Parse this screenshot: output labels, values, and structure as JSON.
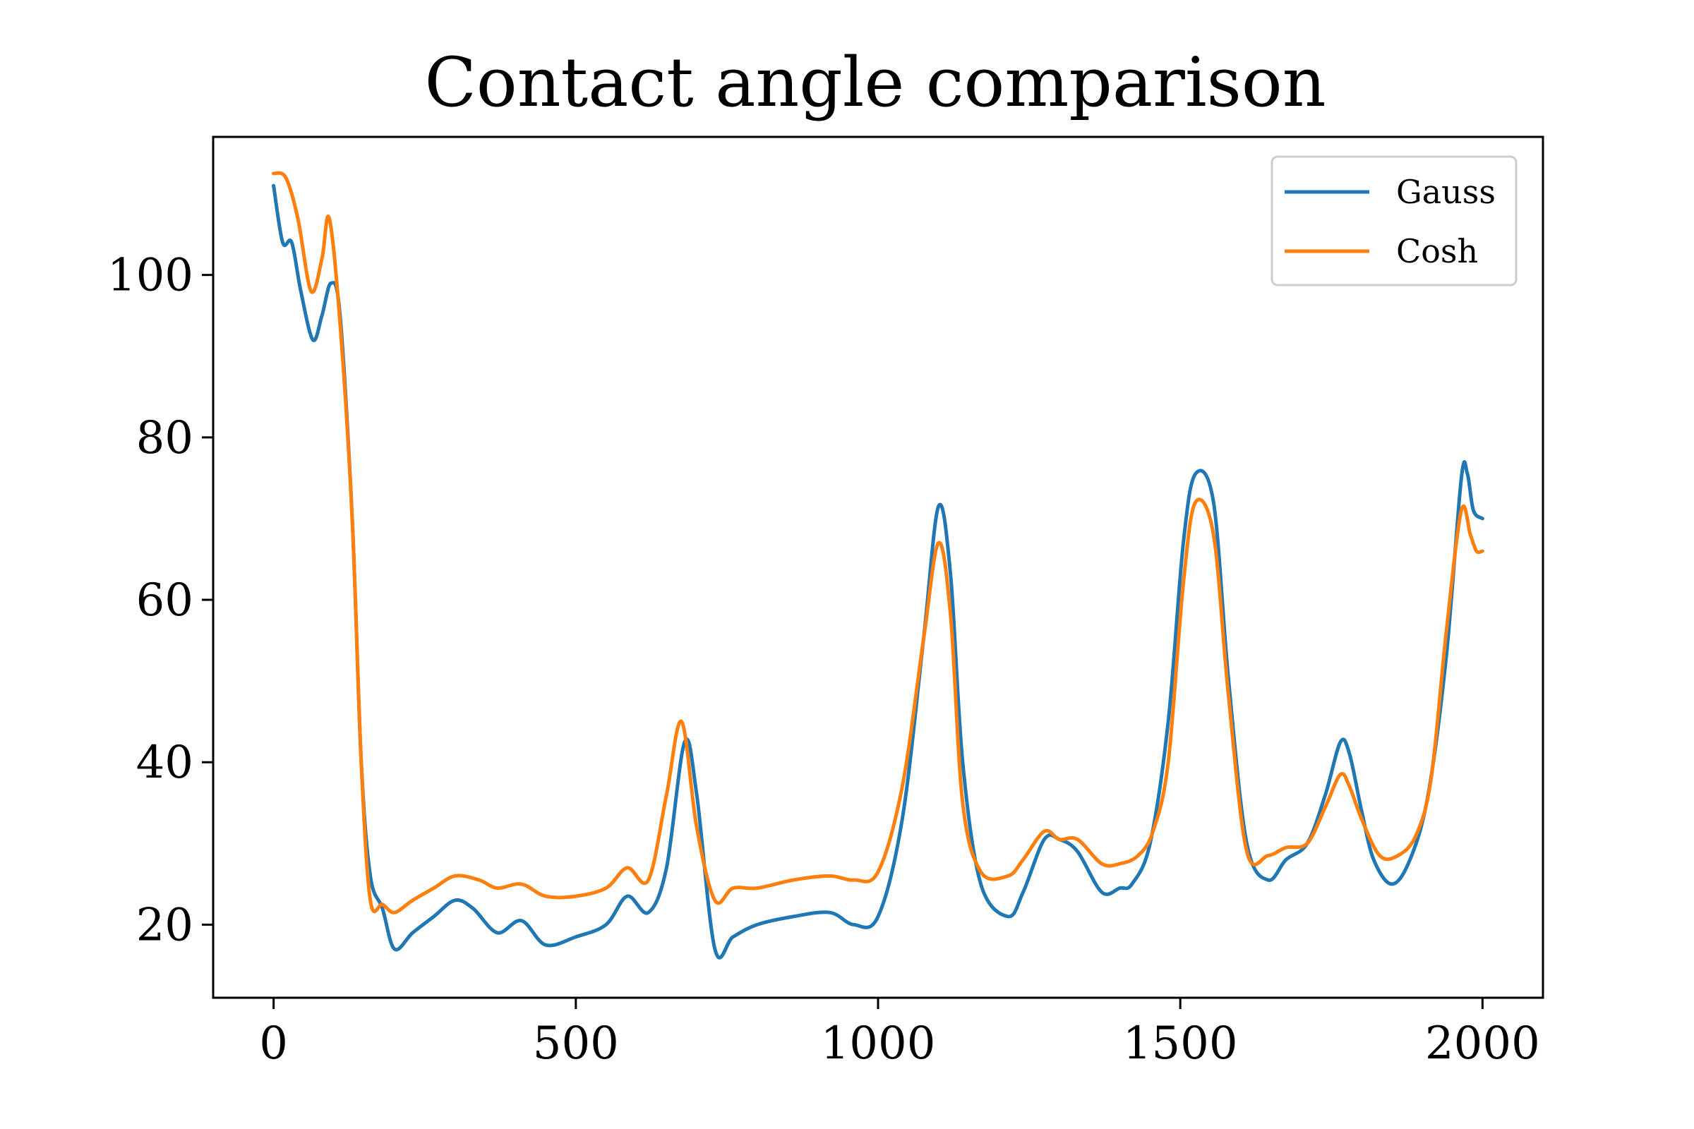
{
  "chart_data": {
    "type": "line",
    "title": "Contact angle comparison",
    "xlabel": "",
    "ylabel": "",
    "xlim": [
      -100,
      2100
    ],
    "ylim": [
      11,
      117
    ],
    "x_ticks": [
      0,
      500,
      1000,
      1500,
      2000
    ],
    "x_tick_labels": [
      "0",
      "500",
      "1000",
      "1500",
      "2000"
    ],
    "y_ticks": [
      20,
      40,
      60,
      80,
      100
    ],
    "y_tick_labels": [
      "20",
      "40",
      "60",
      "80",
      "100"
    ],
    "grid": false,
    "legend_position": "top-right",
    "series": [
      {
        "name": "Gauss",
        "color": "#1f77b4",
        "points": [
          [
            0,
            111
          ],
          [
            15,
            104
          ],
          [
            30,
            104
          ],
          [
            45,
            98
          ],
          [
            65,
            92
          ],
          [
            80,
            95
          ],
          [
            95,
            99
          ],
          [
            110,
            95
          ],
          [
            130,
            70
          ],
          [
            145,
            40
          ],
          [
            160,
            26
          ],
          [
            180,
            22
          ],
          [
            200,
            17
          ],
          [
            230,
            19
          ],
          [
            265,
            21
          ],
          [
            300,
            23
          ],
          [
            330,
            22
          ],
          [
            370,
            19
          ],
          [
            410,
            20.5
          ],
          [
            450,
            17.5
          ],
          [
            500,
            18.5
          ],
          [
            550,
            20
          ],
          [
            585,
            23.5
          ],
          [
            620,
            21.5
          ],
          [
            650,
            27
          ],
          [
            680,
            42.5
          ],
          [
            700,
            36
          ],
          [
            730,
            17
          ],
          [
            760,
            18.5
          ],
          [
            800,
            20
          ],
          [
            860,
            21
          ],
          [
            920,
            21.5
          ],
          [
            960,
            20
          ],
          [
            1000,
            21
          ],
          [
            1040,
            33
          ],
          [
            1075,
            55
          ],
          [
            1100,
            71.5
          ],
          [
            1120,
            63
          ],
          [
            1140,
            40
          ],
          [
            1170,
            25
          ],
          [
            1215,
            21
          ],
          [
            1240,
            24
          ],
          [
            1275,
            30.5
          ],
          [
            1300,
            30.5
          ],
          [
            1330,
            29
          ],
          [
            1370,
            24
          ],
          [
            1400,
            24.5
          ],
          [
            1420,
            25
          ],
          [
            1450,
            30
          ],
          [
            1480,
            45
          ],
          [
            1505,
            67
          ],
          [
            1525,
            75.5
          ],
          [
            1555,
            72
          ],
          [
            1580,
            50
          ],
          [
            1610,
            30
          ],
          [
            1645,
            25.5
          ],
          [
            1675,
            28
          ],
          [
            1710,
            30
          ],
          [
            1740,
            36
          ],
          [
            1765,
            42.5
          ],
          [
            1780,
            41
          ],
          [
            1800,
            34
          ],
          [
            1820,
            28
          ],
          [
            1850,
            25
          ],
          [
            1880,
            28
          ],
          [
            1910,
            36
          ],
          [
            1940,
            53
          ],
          [
            1965,
            75
          ],
          [
            1975,
            75.5
          ],
          [
            1985,
            71
          ],
          [
            2000,
            70
          ]
        ]
      },
      {
        "name": "Cosh",
        "color": "#ff7f0e",
        "points": [
          [
            0,
            112.5
          ],
          [
            20,
            112
          ],
          [
            40,
            107
          ],
          [
            62,
            98
          ],
          [
            80,
            102
          ],
          [
            92,
            107
          ],
          [
            110,
            94
          ],
          [
            130,
            70
          ],
          [
            145,
            40
          ],
          [
            160,
            23
          ],
          [
            180,
            22.5
          ],
          [
            200,
            21.5
          ],
          [
            230,
            23
          ],
          [
            265,
            24.5
          ],
          [
            300,
            26
          ],
          [
            340,
            25.5
          ],
          [
            370,
            24.5
          ],
          [
            410,
            25
          ],
          [
            450,
            23.5
          ],
          [
            500,
            23.5
          ],
          [
            550,
            24.5
          ],
          [
            585,
            27
          ],
          [
            620,
            25.5
          ],
          [
            650,
            36
          ],
          [
            675,
            45
          ],
          [
            700,
            32
          ],
          [
            730,
            23
          ],
          [
            760,
            24.5
          ],
          [
            800,
            24.5
          ],
          [
            860,
            25.5
          ],
          [
            920,
            26
          ],
          [
            960,
            25.5
          ],
          [
            1000,
            26.5
          ],
          [
            1040,
            37
          ],
          [
            1075,
            55
          ],
          [
            1100,
            67
          ],
          [
            1120,
            58
          ],
          [
            1140,
            35
          ],
          [
            1170,
            26.5
          ],
          [
            1215,
            26
          ],
          [
            1240,
            28
          ],
          [
            1275,
            31.5
          ],
          [
            1300,
            30.5
          ],
          [
            1330,
            30.5
          ],
          [
            1370,
            27.5
          ],
          [
            1400,
            27.5
          ],
          [
            1430,
            28.5
          ],
          [
            1455,
            31.5
          ],
          [
            1480,
            40
          ],
          [
            1505,
            62
          ],
          [
            1525,
            72
          ],
          [
            1555,
            68
          ],
          [
            1580,
            48
          ],
          [
            1610,
            29
          ],
          [
            1645,
            28.5
          ],
          [
            1675,
            29.5
          ],
          [
            1710,
            30
          ],
          [
            1740,
            34.5
          ],
          [
            1765,
            38.5
          ],
          [
            1780,
            37
          ],
          [
            1800,
            33
          ],
          [
            1830,
            28.5
          ],
          [
            1860,
            28.5
          ],
          [
            1890,
            31
          ],
          [
            1915,
            38
          ],
          [
            1940,
            56
          ],
          [
            1965,
            71
          ],
          [
            1980,
            68
          ],
          [
            1990,
            66
          ],
          [
            2000,
            66
          ]
        ]
      }
    ]
  }
}
